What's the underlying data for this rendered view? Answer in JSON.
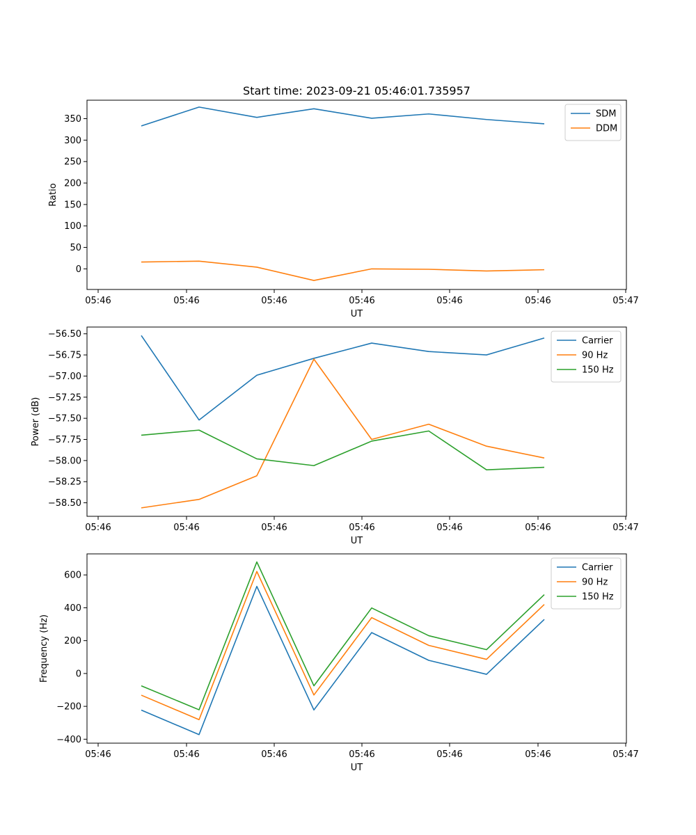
{
  "figure_title": "Start time: 2023-09-21 05:46:01.735957",
  "chart_data": [
    {
      "type": "line",
      "title": "Start time: 2023-09-21 05:46:01.735957",
      "xlabel": "UT",
      "ylabel": "Ratio",
      "x_tick_labels": [
        "05:46",
        "05:46",
        "05:46",
        "05:46",
        "05:46",
        "05:46",
        "05:47"
      ],
      "y_ticks": [
        0,
        50,
        100,
        150,
        200,
        250,
        300,
        350
      ],
      "y_tick_labels": [
        "0",
        "50",
        "100",
        "150",
        "200",
        "250",
        "300",
        "350"
      ],
      "ylim": [
        -48,
        393
      ],
      "legend_position": "top-right",
      "series": [
        {
          "name": "SDM",
          "color": "#1f77b4",
          "values": [
            333,
            377,
            353,
            373,
            351,
            361,
            348,
            338
          ]
        },
        {
          "name": "DDM",
          "color": "#ff7f0e",
          "values": [
            16,
            18,
            4,
            -27,
            0,
            -1,
            -5,
            -2
          ]
        }
      ]
    },
    {
      "type": "line",
      "title": "",
      "xlabel": "UT",
      "ylabel": "Power (dB)",
      "x_tick_labels": [
        "05:46",
        "05:46",
        "05:46",
        "05:46",
        "05:46",
        "05:46",
        "05:47"
      ],
      "y_ticks": [
        -58.5,
        -58.25,
        -58.0,
        -57.75,
        -57.5,
        -57.25,
        -57.0,
        -56.75,
        -56.5
      ],
      "y_tick_labels": [
        "−58.50",
        "−58.25",
        "−58.00",
        "−57.75",
        "−57.50",
        "−57.25",
        "−57.00",
        "−56.75",
        "−56.50"
      ],
      "ylim": [
        -58.66,
        -56.42
      ],
      "legend_position": "top-right",
      "series": [
        {
          "name": "Carrier",
          "color": "#1f77b4",
          "values": [
            -56.52,
            -57.52,
            -56.99,
            -56.79,
            -56.61,
            -56.71,
            -56.75,
            -56.55
          ]
        },
        {
          "name": "90 Hz",
          "color": "#ff7f0e",
          "values": [
            -58.56,
            -58.46,
            -58.18,
            -56.8,
            -57.75,
            -57.57,
            -57.83,
            -57.97
          ]
        },
        {
          "name": "150 Hz",
          "color": "#2ca02c",
          "values": [
            -57.7,
            -57.64,
            -57.98,
            -58.06,
            -57.77,
            -57.65,
            -58.11,
            -58.08
          ]
        }
      ]
    },
    {
      "type": "line",
      "title": "",
      "xlabel": "UT",
      "ylabel": "Frequency (Hz)",
      "x_tick_labels": [
        "05:46",
        "05:46",
        "05:46",
        "05:46",
        "05:46",
        "05:46",
        "05:47"
      ],
      "y_ticks": [
        -400,
        -200,
        0,
        200,
        400,
        600
      ],
      "y_tick_labels": [
        "−400",
        "−200",
        "0",
        "200",
        "400",
        "600"
      ],
      "ylim": [
        -424,
        728
      ],
      "legend_position": "top-right",
      "series": [
        {
          "name": "Carrier",
          "color": "#1f77b4",
          "values": [
            -223,
            -372,
            530,
            -222,
            249,
            80,
            -5,
            329
          ]
        },
        {
          "name": "90 Hz",
          "color": "#ff7f0e",
          "values": [
            -132,
            -281,
            621,
            -131,
            340,
            171,
            86,
            420
          ]
        },
        {
          "name": "150 Hz",
          "color": "#2ca02c",
          "values": [
            -75,
            -221,
            679,
            -75,
            399,
            230,
            145,
            480
          ]
        }
      ]
    }
  ]
}
